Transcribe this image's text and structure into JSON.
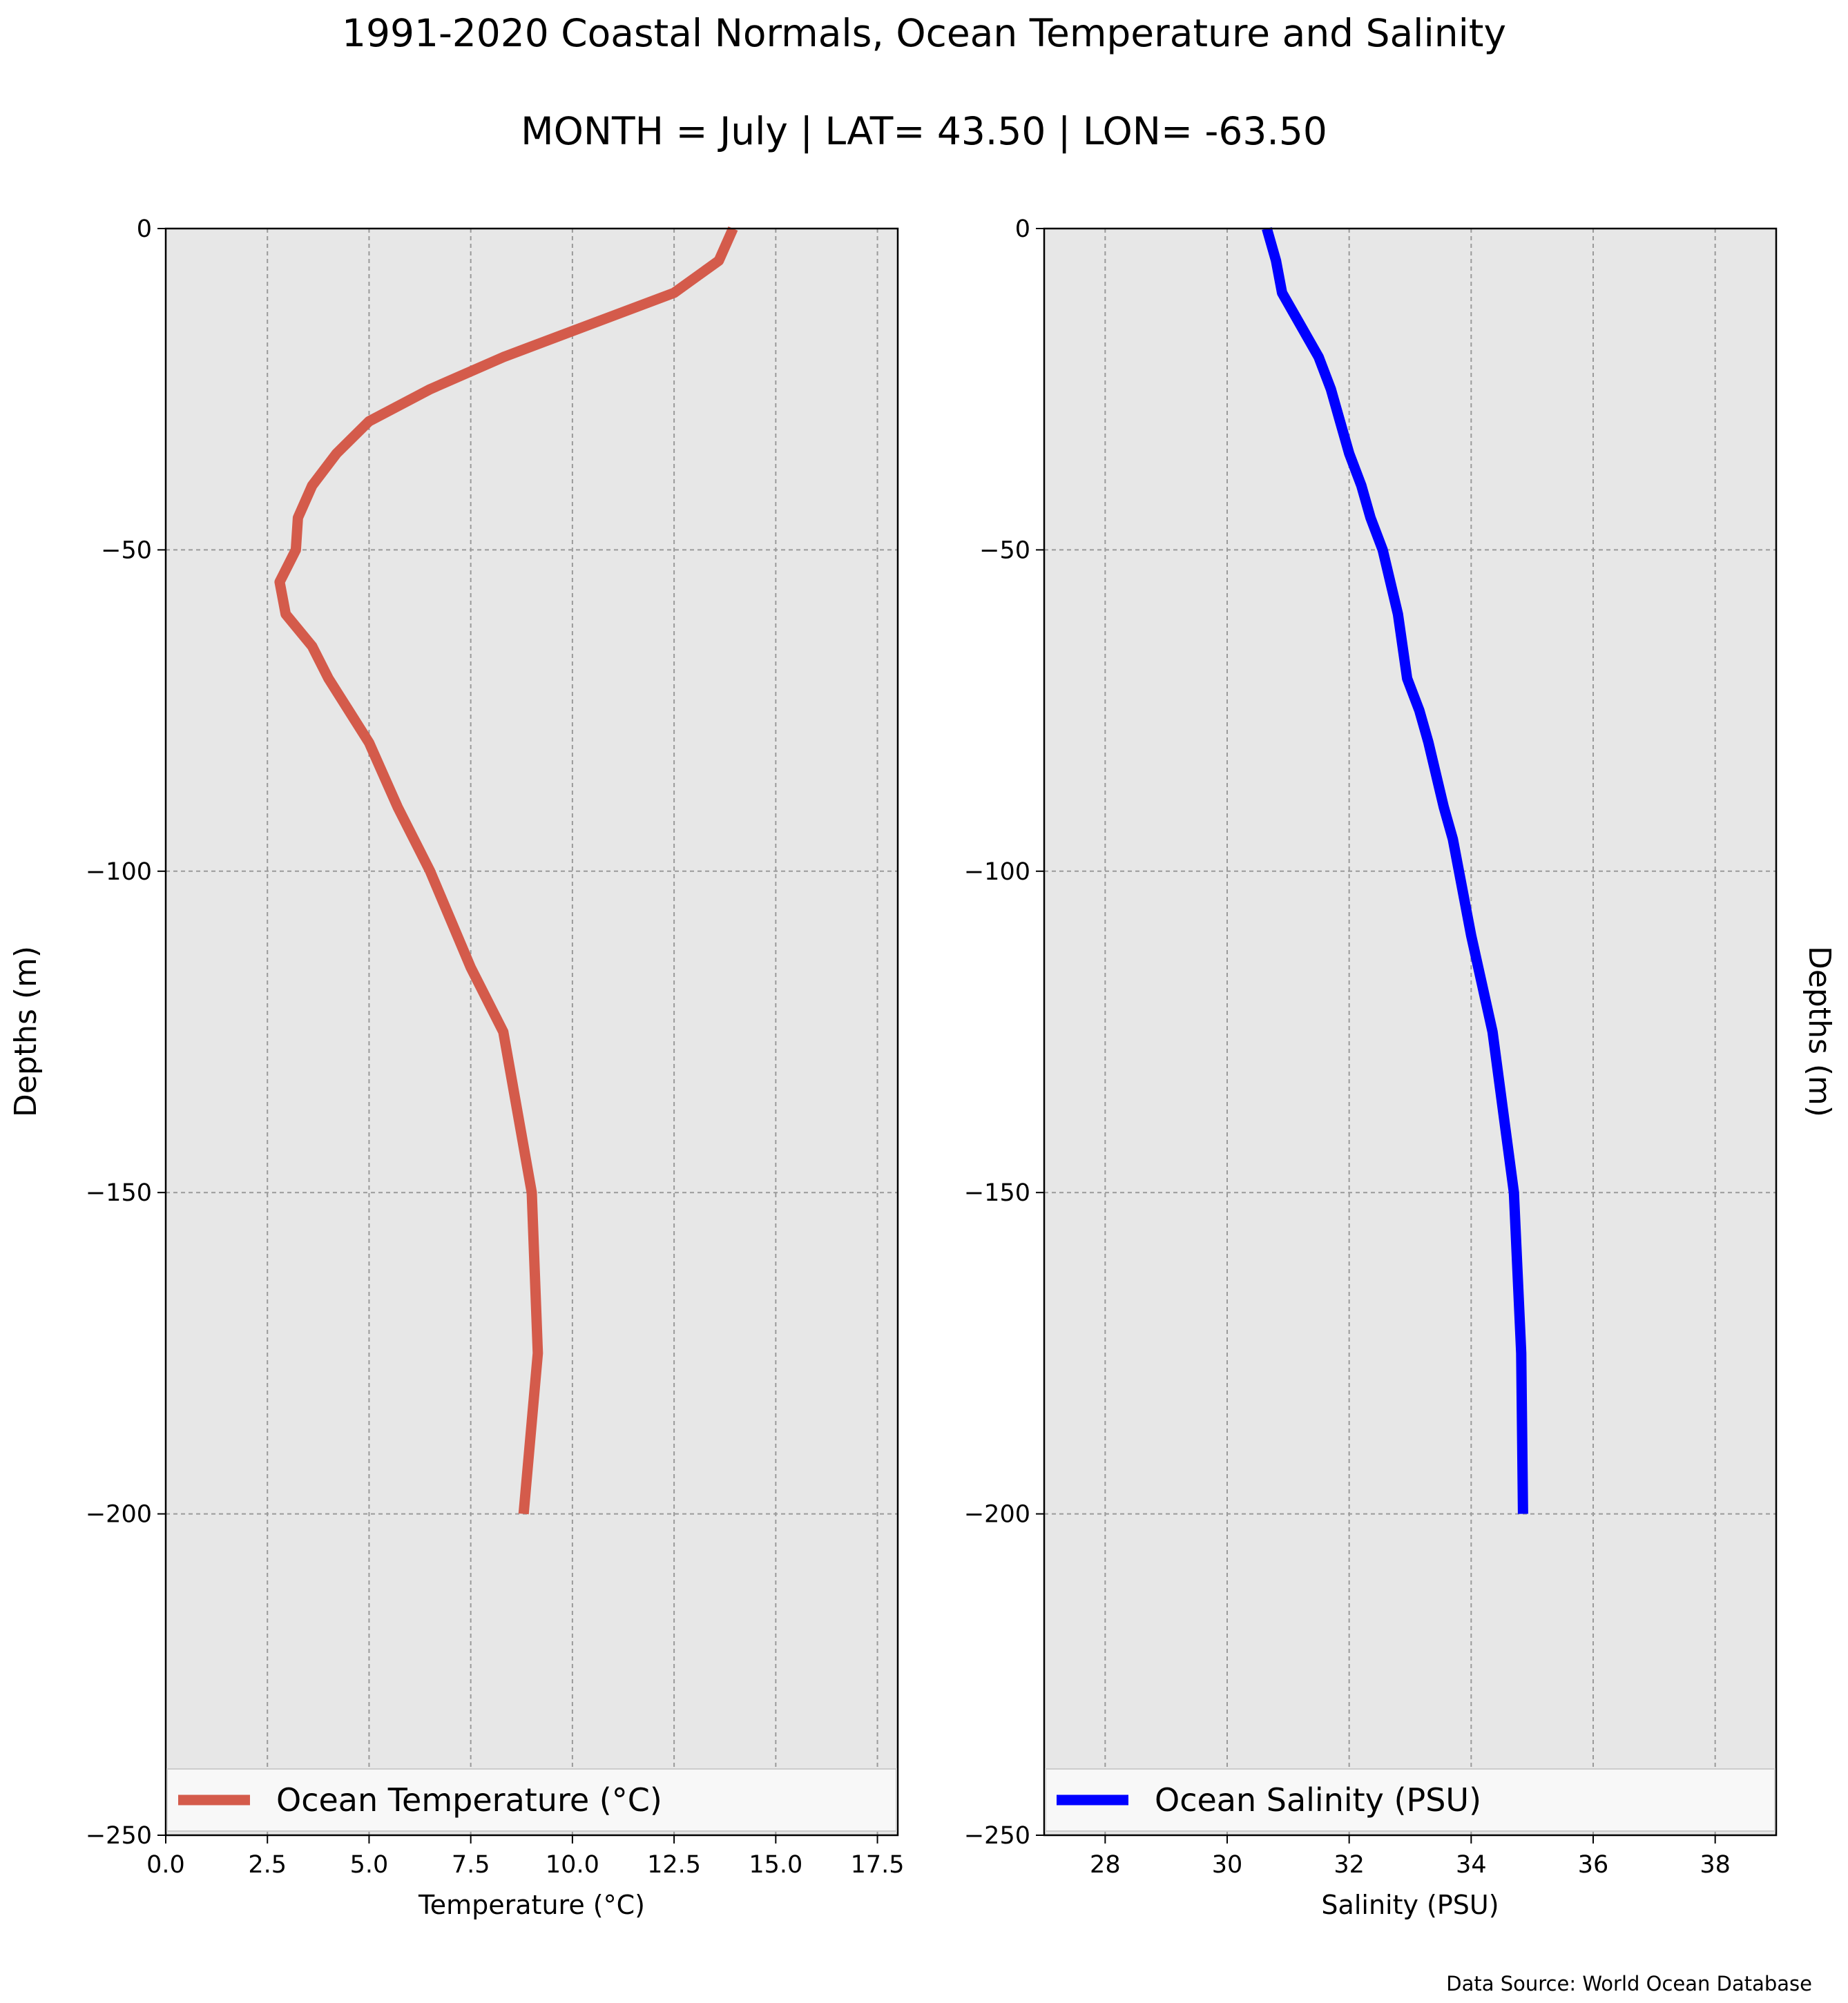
{
  "title": "1991-2020 Coastal Normals, Ocean Temperature and Salinity",
  "subtitle": "MONTH = July | LAT= 43.50 | LON= -63.50",
  "source": "Data Source: World Ocean Database",
  "colors": {
    "temperature": "#d45b4b",
    "salinity": "#0000ff",
    "plot_bg": "#e7e7e7",
    "grid": "#9a9a9a"
  },
  "chart_data": [
    {
      "type": "line",
      "xlabel": "Temperature ($^\\circ$C)",
      "ylabel": "Depths (m)",
      "xlim": [
        0,
        18
      ],
      "ylim": [
        -250,
        0
      ],
      "xticks": [
        "0.0",
        "2.5",
        "5.0",
        "7.5",
        "10.0",
        "12.5",
        "15.0",
        "17.5"
      ],
      "yticks": [
        "0",
        "−50",
        "−100",
        "−150",
        "−200",
        "−250"
      ],
      "grid": true,
      "legend_position": "bottom",
      "series": [
        {
          "name": "Ocean Temperature ($^\\circ$C)",
          "x": [
            13.95,
            13.6,
            12.5,
            8.3,
            6.5,
            5.0,
            4.2,
            3.6,
            3.25,
            3.2,
            2.8,
            2.95,
            3.6,
            4.0,
            5.0,
            5.7,
            6.5,
            7.5,
            8.3,
            9.0,
            9.15,
            8.8
          ],
          "y": [
            0,
            -5,
            -10,
            -20,
            -25,
            -30,
            -35,
            -40,
            -45,
            -50,
            -55,
            -60,
            -65,
            -70,
            -80,
            -90,
            -100,
            -115,
            -125,
            -150,
            -175,
            -200
          ]
        }
      ]
    },
    {
      "type": "line",
      "xlabel": "Salinity (PSU)",
      "ylabel": "Depths (m)",
      "xlim": [
        27,
        39
      ],
      "ylim": [
        -250,
        0
      ],
      "xticks": [
        "28",
        "30",
        "32",
        "34",
        "36",
        "38"
      ],
      "yticks": [
        "0",
        "−50",
        "−100",
        "−150",
        "−200",
        "−250"
      ],
      "grid": true,
      "legend_position": "bottom",
      "series": [
        {
          "name": "Ocean Salinity (PSU)",
          "x": [
            30.65,
            30.8,
            30.9,
            31.2,
            31.5,
            31.7,
            31.85,
            32.0,
            32.2,
            32.35,
            32.55,
            32.8,
            32.95,
            33.15,
            33.3,
            33.55,
            33.7,
            34.0,
            34.35,
            34.7,
            34.82,
            34.85
          ],
          "y": [
            0,
            -5,
            -10,
            -15,
            -20,
            -25,
            -30,
            -35,
            -40,
            -45,
            -50,
            -60,
            -70,
            -75,
            -80,
            -90,
            -95,
            -110,
            -125,
            -150,
            -175,
            -200
          ]
        }
      ]
    }
  ]
}
